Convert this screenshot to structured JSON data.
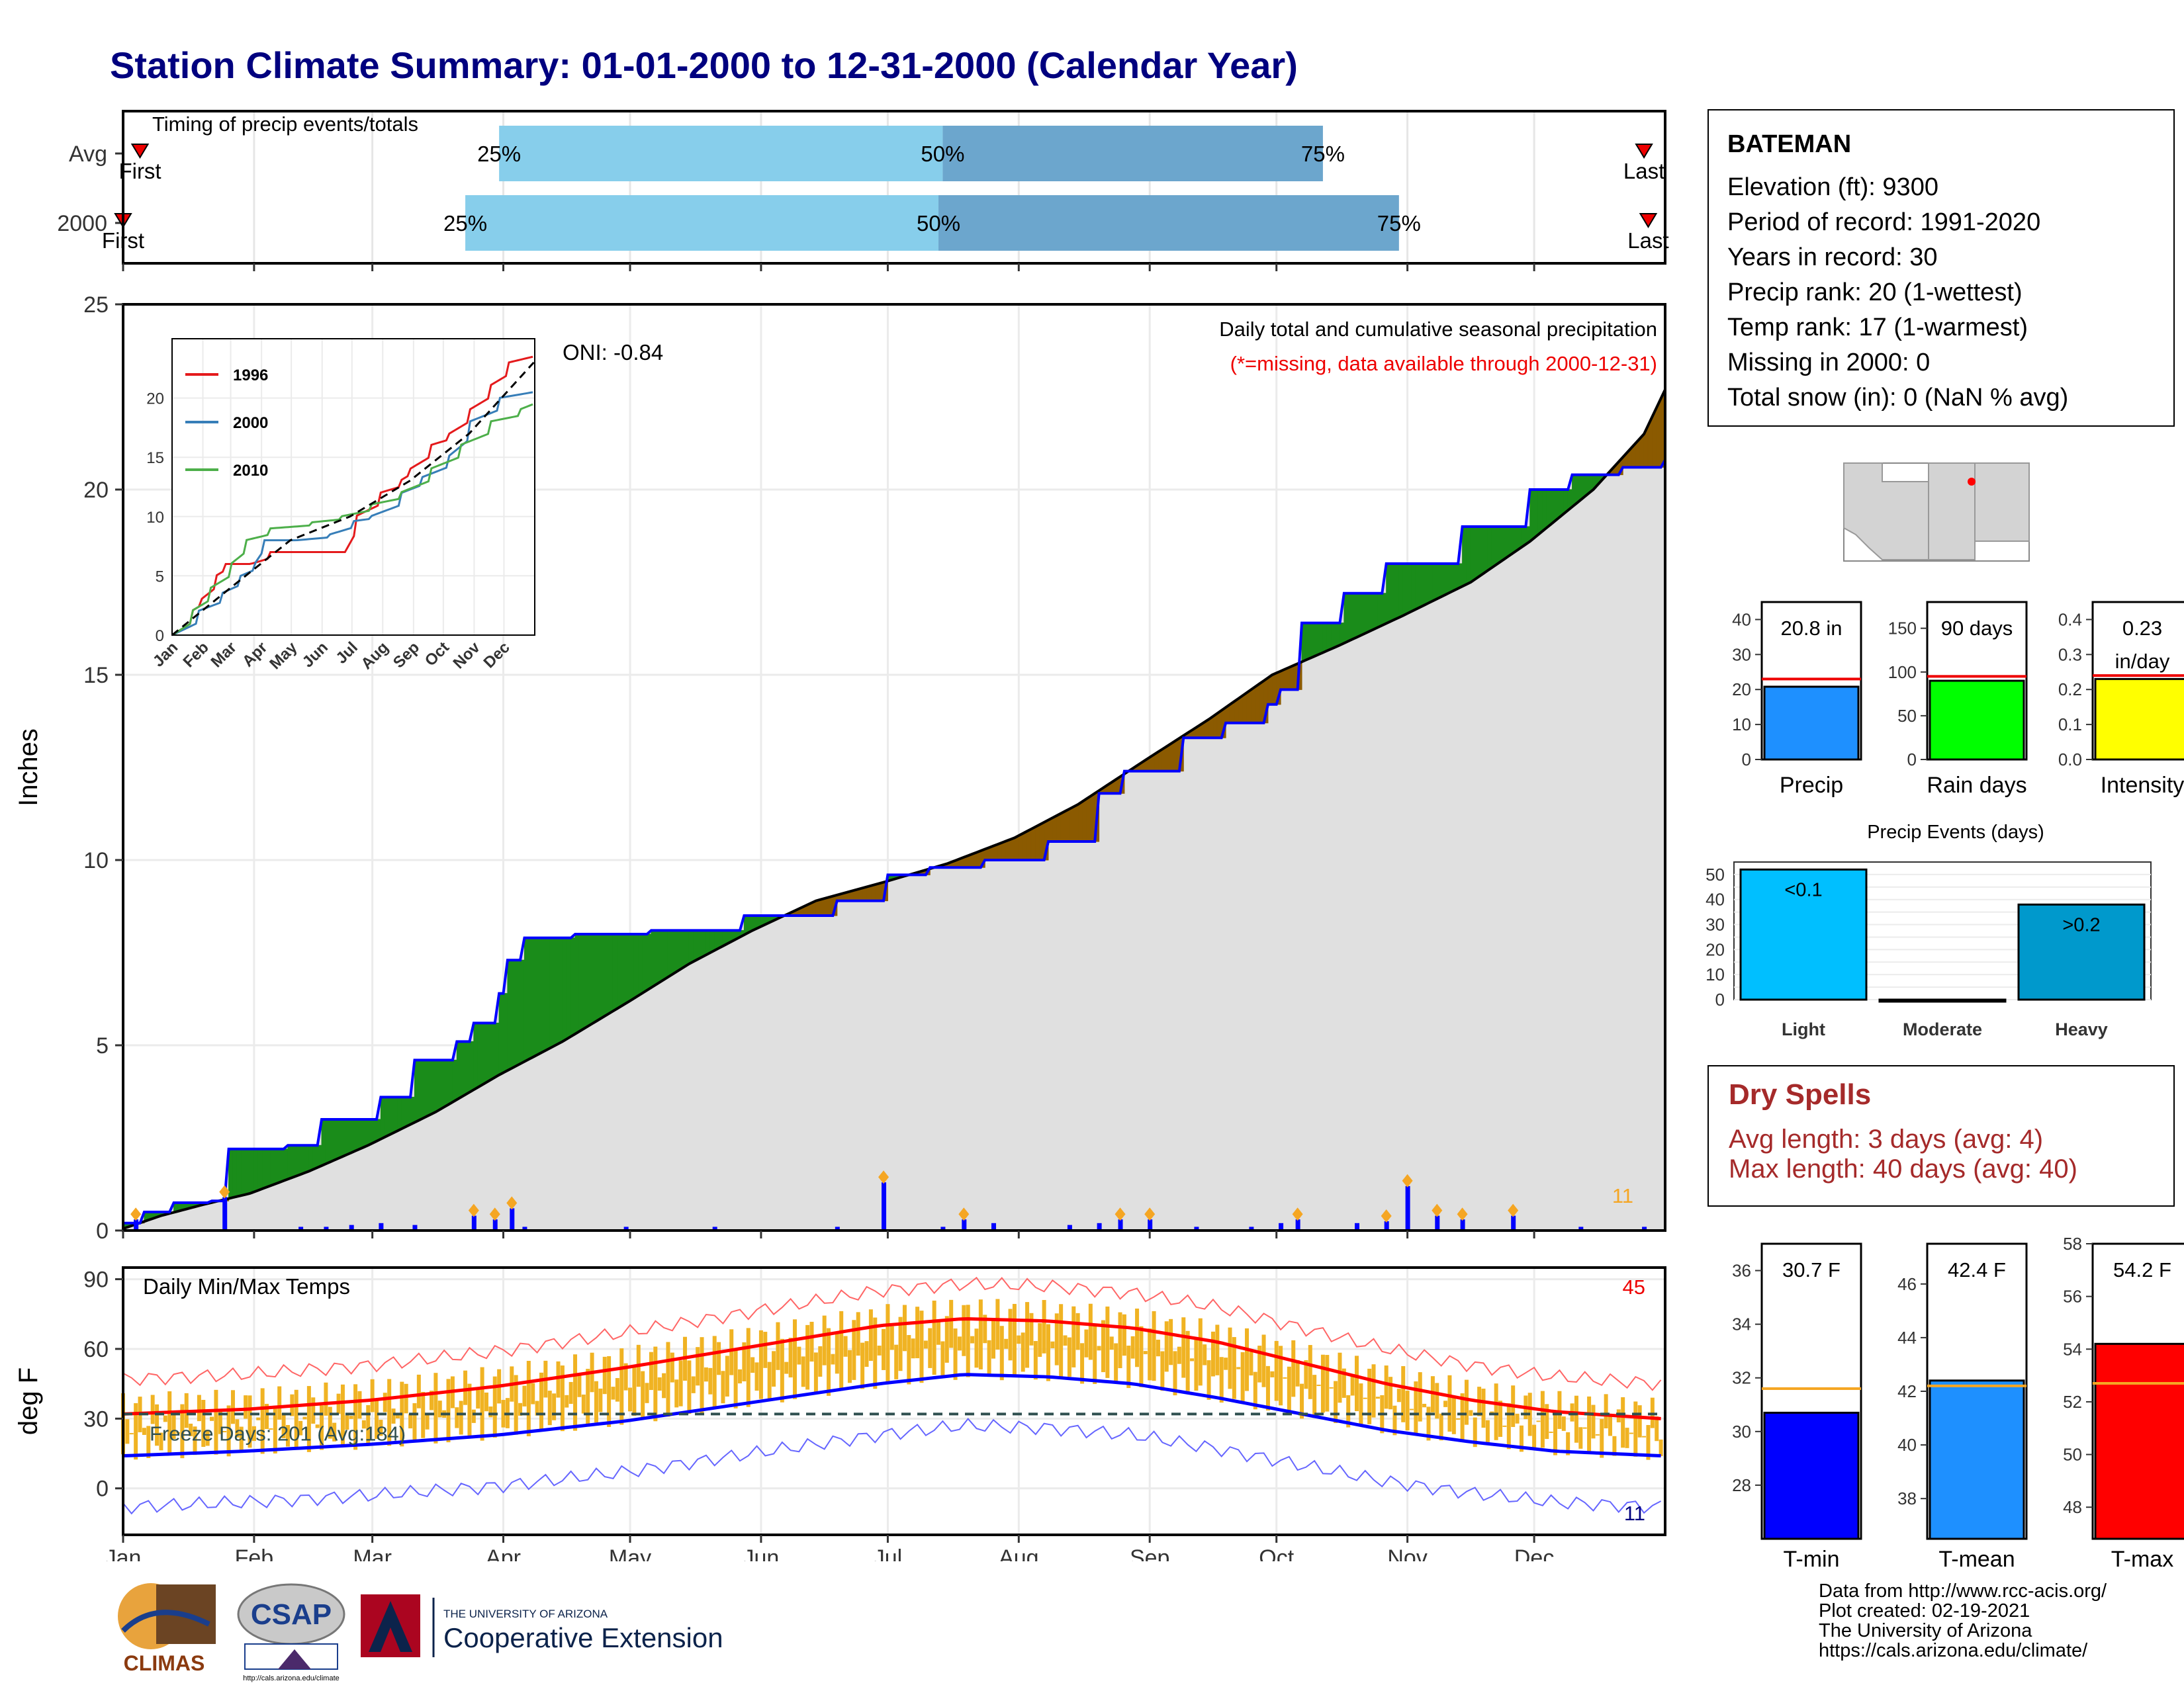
{
  "page": {
    "title": "Station Climate Summary: 01-01-2000 to 12-31-2000 (Calendar Year)"
  },
  "station": {
    "name": "BATEMAN",
    "lines": [
      "Elevation (ft): 9300",
      "Period of record: 1991-2020",
      "Years in record: 30",
      "Precip rank: 20 (1-wettest)",
      "Temp rank: 17 (1-warmest)",
      "Missing in 2000: 0",
      "Total snow (in): 0 (NaN % avg)"
    ]
  },
  "dry_spells": {
    "heading": "Dry Spells",
    "avg_length": "Avg length: 3 days (avg: 4)",
    "max_length": "Max length: 40 days (avg: 40)"
  },
  "credits": {
    "lines": [
      "Data from http://www.rcc-acis.org/",
      "Plot created: 02-19-2021",
      "The University of Arizona",
      "https://cals.arizona.edu/climate/"
    ]
  },
  "logos": {
    "climas": "CLIMAS",
    "csap": "CSAP",
    "csap_url": "http://cals.arizona.edu/climate",
    "ua_small": "THE UNIVERSITY OF ARIZONA",
    "ua_big": "Cooperative Extension"
  },
  "colors": {
    "title": "#00007f",
    "precip_blue": "#0000ff",
    "above_avg_brown": "#8b5a00",
    "below_avg_green": "#1a8c1a",
    "cumulative_fill": "#e0e0e0",
    "temp_bar": "#f0b323",
    "tmax_avg": "#ff0000",
    "tmin_avg": "#0000ff",
    "dry_spell": "#a52a2a"
  },
  "months": [
    "Jan",
    "Feb",
    "Mar",
    "Apr",
    "May",
    "Jun",
    "Jul",
    "Aug",
    "Sep",
    "Oct",
    "Nov",
    "Dec"
  ],
  "chart_data": [
    {
      "type": "timing",
      "title": "Timing of precip events/totals",
      "rows": [
        {
          "label": "Avg",
          "first_day": 5,
          "p25_day": 90,
          "p50_day": 195,
          "p75_day": 285,
          "last_day": 361
        },
        {
          "label": "2000",
          "first_day": 1,
          "p25_day": 82,
          "p50_day": 194,
          "p75_day": 303,
          "last_day": 362
        }
      ],
      "markers": [
        "First",
        "25%",
        "50%",
        "75%",
        "Last"
      ]
    },
    {
      "type": "area",
      "title": "Daily total and cumulative seasonal precipitation",
      "subtitle": "(*=missing, data available through 2000-12-31)",
      "ylabel": "Inches",
      "ylim": [
        0,
        25
      ],
      "yticks": [
        0,
        5,
        10,
        15,
        20,
        25
      ],
      "oni": "ONI: -0.84",
      "heavy_event_count": "11",
      "avg_cumulative": [
        [
          1,
          0.05
        ],
        [
          10,
          0.4
        ],
        [
          20,
          0.7
        ],
        [
          31,
          1.0
        ],
        [
          45,
          1.6
        ],
        [
          59,
          2.3
        ],
        [
          75,
          3.2
        ],
        [
          90,
          4.2
        ],
        [
          105,
          5.1
        ],
        [
          121,
          6.2
        ],
        [
          135,
          7.2
        ],
        [
          150,
          8.1
        ],
        [
          165,
          8.9
        ],
        [
          181,
          9.4
        ],
        [
          196,
          9.9
        ],
        [
          212,
          10.6
        ],
        [
          227,
          11.5
        ],
        [
          243,
          12.7
        ],
        [
          258,
          13.8
        ],
        [
          273,
          15.0
        ],
        [
          289,
          15.8
        ],
        [
          304,
          16.6
        ],
        [
          320,
          17.5
        ],
        [
          334,
          18.6
        ],
        [
          349,
          20.0
        ],
        [
          361,
          21.5
        ],
        [
          366,
          22.7
        ]
      ],
      "obs_cumulative": [
        [
          1,
          0.2
        ],
        [
          6,
          0.5
        ],
        [
          13,
          0.75
        ],
        [
          22,
          0.8
        ],
        [
          26,
          2.2
        ],
        [
          40,
          2.3
        ],
        [
          48,
          3.0
        ],
        [
          62,
          3.6
        ],
        [
          70,
          4.6
        ],
        [
          80,
          5.1
        ],
        [
          84,
          5.6
        ],
        [
          90,
          6.4
        ],
        [
          92,
          7.3
        ],
        [
          96,
          7.9
        ],
        [
          108,
          8.0
        ],
        [
          126,
          8.1
        ],
        [
          148,
          8.5
        ],
        [
          170,
          8.9
        ],
        [
          182,
          9.6
        ],
        [
          192,
          9.8
        ],
        [
          205,
          10.0
        ],
        [
          220,
          10.5
        ],
        [
          232,
          11.8
        ],
        [
          238,
          12.4
        ],
        [
          252,
          13.3
        ],
        [
          262,
          13.7
        ],
        [
          272,
          14.2
        ],
        [
          275,
          14.6
        ],
        [
          280,
          16.4
        ],
        [
          290,
          17.2
        ],
        [
          300,
          18.0
        ],
        [
          318,
          19.0
        ],
        [
          334,
          20.0
        ],
        [
          344,
          20.4
        ],
        [
          356,
          20.6
        ],
        [
          366,
          20.8
        ]
      ],
      "daily_precip": [
        [
          4,
          0.3
        ],
        [
          25,
          0.9
        ],
        [
          43,
          0.1
        ],
        [
          49,
          0.1
        ],
        [
          55,
          0.15
        ],
        [
          62,
          0.2
        ],
        [
          70,
          0.15
        ],
        [
          84,
          0.4
        ],
        [
          89,
          0.3
        ],
        [
          93,
          0.6
        ],
        [
          96,
          0.1
        ],
        [
          120,
          0.1
        ],
        [
          141,
          0.1
        ],
        [
          170,
          0.1
        ],
        [
          181,
          1.3
        ],
        [
          195,
          0.1
        ],
        [
          200,
          0.3
        ],
        [
          207,
          0.2
        ],
        [
          225,
          0.15
        ],
        [
          232,
          0.2
        ],
        [
          237,
          0.3
        ],
        [
          244,
          0.3
        ],
        [
          255,
          0.1
        ],
        [
          268,
          0.1
        ],
        [
          275,
          0.2
        ],
        [
          279,
          0.3
        ],
        [
          293,
          0.2
        ],
        [
          300,
          0.25
        ],
        [
          305,
          1.2
        ],
        [
          312,
          0.4
        ],
        [
          318,
          0.3
        ],
        [
          330,
          0.4
        ],
        [
          346,
          0.1
        ],
        [
          361,
          0.1
        ]
      ]
    },
    {
      "type": "line",
      "title": "",
      "series": [
        {
          "name": "1996",
          "color": "#e41a1c",
          "values": [
            [
              1,
              0
            ],
            [
              20,
              2
            ],
            [
              30,
              3
            ],
            [
              45,
              5
            ],
            [
              55,
              6
            ],
            [
              70,
              6
            ],
            [
              80,
              6
            ],
            [
              100,
              7
            ],
            [
              130,
              7
            ],
            [
              150,
              7
            ],
            [
              175,
              7
            ],
            [
              185,
              10
            ],
            [
              210,
              12
            ],
            [
              230,
              13
            ],
            [
              240,
              14
            ],
            [
              260,
              16
            ],
            [
              280,
              17
            ],
            [
              300,
              19
            ],
            [
              320,
              21
            ],
            [
              340,
              23
            ],
            [
              365,
              24
            ]
          ]
        },
        {
          "name": "2000",
          "color": "#377eb8",
          "values": [
            [
              1,
              0
            ],
            [
              26,
              2
            ],
            [
              50,
              3.5
            ],
            [
              70,
              5
            ],
            [
              84,
              6
            ],
            [
              92,
              8
            ],
            [
              126,
              8
            ],
            [
              160,
              8.5
            ],
            [
              182,
              9.6
            ],
            [
              200,
              10
            ],
            [
              232,
              12
            ],
            [
              252,
              13.3
            ],
            [
              278,
              15
            ],
            [
              300,
              18
            ],
            [
              330,
              20
            ],
            [
              365,
              21
            ]
          ]
        },
        {
          "name": "2010",
          "color": "#4daf4a",
          "values": [
            [
              1,
              0
            ],
            [
              20,
              2
            ],
            [
              40,
              4
            ],
            [
              60,
              6
            ],
            [
              75,
              8
            ],
            [
              100,
              9
            ],
            [
              140,
              9.5
            ],
            [
              170,
              10
            ],
            [
              200,
              11
            ],
            [
              230,
              12
            ],
            [
              260,
              14
            ],
            [
              290,
              16
            ],
            [
              320,
              18
            ],
            [
              350,
              19
            ],
            [
              365,
              20
            ]
          ]
        }
      ],
      "average": {
        "name": "avg",
        "values": [
          [
            1,
            0
          ],
          [
            60,
            4
          ],
          [
            120,
            8
          ],
          [
            180,
            10
          ],
          [
            240,
            13
          ],
          [
            300,
            17
          ],
          [
            365,
            23
          ]
        ]
      },
      "ylim": [
        0,
        25
      ],
      "yticks": [
        0,
        5,
        10,
        15,
        20
      ]
    },
    {
      "type": "bar",
      "title": "",
      "categories": [
        "Precip",
        "Rain days",
        "Intensity"
      ],
      "panels": [
        {
          "name": "Precip",
          "value": 20.8,
          "avg": 23,
          "label": "20.8 in",
          "ylim": [
            0,
            45
          ],
          "yticks": [
            0,
            10,
            20,
            30,
            40
          ],
          "color": "#1e90ff"
        },
        {
          "name": "Rain days",
          "value": 90,
          "avg": 95,
          "label": "90 days",
          "ylim": [
            0,
            180
          ],
          "yticks": [
            0,
            50,
            100,
            150
          ],
          "color": "#00ff00"
        },
        {
          "name": "Intensity",
          "value": 0.23,
          "avg": 0.24,
          "label": "0.23",
          "label2": "in/day",
          "ylim": [
            0,
            0.45
          ],
          "yticks": [
            "0.0",
            "0.1",
            "0.2",
            "0.3",
            "0.4"
          ],
          "color": "#ffff00"
        }
      ]
    },
    {
      "type": "bar",
      "title": "Precip Events (days)",
      "categories": [
        "Light",
        "Moderate",
        "Heavy"
      ],
      "values": [
        52,
        0,
        38
      ],
      "labels": [
        "<0.1",
        "",
        ">0.2"
      ],
      "ylim": [
        0,
        55
      ],
      "yticks": [
        0,
        5,
        10,
        15,
        20,
        25,
        30,
        35,
        40,
        45,
        50
      ]
    },
    {
      "type": "bar",
      "title": "Daily Min/Max Temps",
      "ylabel": "deg F",
      "ylim": [
        -20,
        95
      ],
      "yticks": [
        0,
        30,
        60,
        90
      ],
      "freeze_label": "Freeze Days: 201 (Avg:184)",
      "hot_count": "45",
      "cold_count": "11",
      "freeze_line": 32,
      "tmax_avg": [
        [
          1,
          32
        ],
        [
          30,
          34
        ],
        [
          60,
          38
        ],
        [
          90,
          44
        ],
        [
          120,
          52
        ],
        [
          150,
          61
        ],
        [
          180,
          70
        ],
        [
          200,
          73
        ],
        [
          220,
          72
        ],
        [
          240,
          69
        ],
        [
          260,
          63
        ],
        [
          280,
          54
        ],
        [
          300,
          45
        ],
        [
          320,
          38
        ],
        [
          340,
          33
        ],
        [
          365,
          30
        ]
      ],
      "tmin_avg": [
        [
          1,
          14
        ],
        [
          30,
          16
        ],
        [
          60,
          19
        ],
        [
          90,
          23
        ],
        [
          120,
          29
        ],
        [
          150,
          37
        ],
        [
          180,
          45
        ],
        [
          200,
          49
        ],
        [
          220,
          48
        ],
        [
          240,
          45
        ],
        [
          260,
          39
        ],
        [
          280,
          32
        ],
        [
          300,
          25
        ],
        [
          320,
          20
        ],
        [
          340,
          16
        ],
        [
          365,
          14
        ]
      ]
    },
    {
      "type": "bar",
      "title": "",
      "categories": [
        "T-min",
        "T-mean",
        "T-max"
      ],
      "panels": [
        {
          "name": "T-min",
          "value": 30.7,
          "avg": 31.6,
          "label": "30.7 F",
          "ylim": [
            26,
            37
          ],
          "yticks": [
            28,
            30,
            32,
            34,
            36
          ],
          "color": "#0000ff"
        },
        {
          "name": "T-mean",
          "value": 42.4,
          "avg": 42.2,
          "label": "42.4 F",
          "ylim": [
            36.5,
            47.5
          ],
          "yticks": [
            38,
            40,
            42,
            44,
            46
          ],
          "color": "#1e90ff"
        },
        {
          "name": "T-max",
          "value": 54.2,
          "avg": 52.7,
          "label": "54.2 F",
          "ylim": [
            46.8,
            58
          ],
          "yticks": [
            48,
            50,
            52,
            54,
            56,
            58
          ],
          "color": "#ff0000"
        }
      ]
    }
  ]
}
